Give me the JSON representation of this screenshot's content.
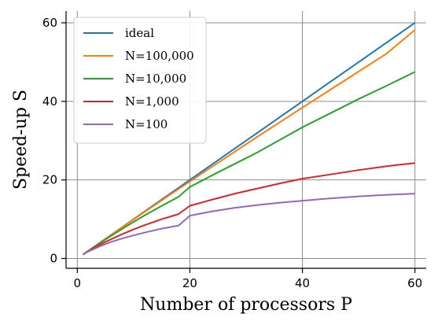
{
  "chart_data": {
    "type": "line",
    "title": "",
    "xlabel": "Number of processors P",
    "ylabel": "Speed-up S",
    "xlim": [
      -2,
      62
    ],
    "ylim": [
      -2.5,
      63
    ],
    "xticks": [
      0,
      20,
      40,
      60
    ],
    "yticks": [
      0,
      20,
      40,
      60
    ],
    "grid": true,
    "legend_position": "upper-left",
    "x": [
      1,
      2,
      4,
      6,
      8,
      10,
      12,
      15,
      18,
      20,
      24,
      28,
      32,
      36,
      40,
      45,
      50,
      55,
      60
    ],
    "series": [
      {
        "name": "ideal",
        "color": "#1f77b4",
        "values": [
          1,
          2,
          4,
          6,
          8,
          10,
          12,
          15,
          18,
          20,
          24,
          28,
          32,
          36,
          40,
          45,
          50,
          55,
          60
        ]
      },
      {
        "name": "N=100,000",
        "color": "#ff7f0e",
        "values": [
          1.0,
          2.0,
          3.99,
          5.97,
          7.95,
          9.92,
          11.88,
          14.8,
          17.7,
          19.6,
          23.4,
          27.2,
          31.0,
          34.7,
          38.4,
          43.0,
          47.6,
          52.2,
          58.2
        ]
      },
      {
        "name": "N=10,000",
        "color": "#2ca02c",
        "values": [
          1.0,
          1.98,
          3.9,
          5.75,
          7.55,
          9.3,
          11.0,
          13.4,
          15.7,
          18.2,
          21.2,
          24.1,
          27.0,
          30.2,
          33.4,
          37.0,
          40.6,
          44.0,
          47.5
        ]
      },
      {
        "name": "N=1,000",
        "color": "#d62728",
        "values": [
          1.0,
          1.9,
          3.5,
          4.9,
          6.2,
          7.4,
          8.5,
          10.0,
          11.3,
          13.4,
          15.0,
          16.5,
          17.8,
          19.1,
          20.3,
          21.4,
          22.5,
          23.5,
          24.3
        ]
      },
      {
        "name": "N=100",
        "color": "#9467bd",
        "values": [
          1.0,
          1.8,
          3.1,
          4.2,
          5.1,
          5.9,
          6.6,
          7.6,
          8.4,
          10.9,
          12.0,
          12.9,
          13.6,
          14.2,
          14.7,
          15.3,
          15.8,
          16.2,
          16.5
        ]
      }
    ]
  }
}
